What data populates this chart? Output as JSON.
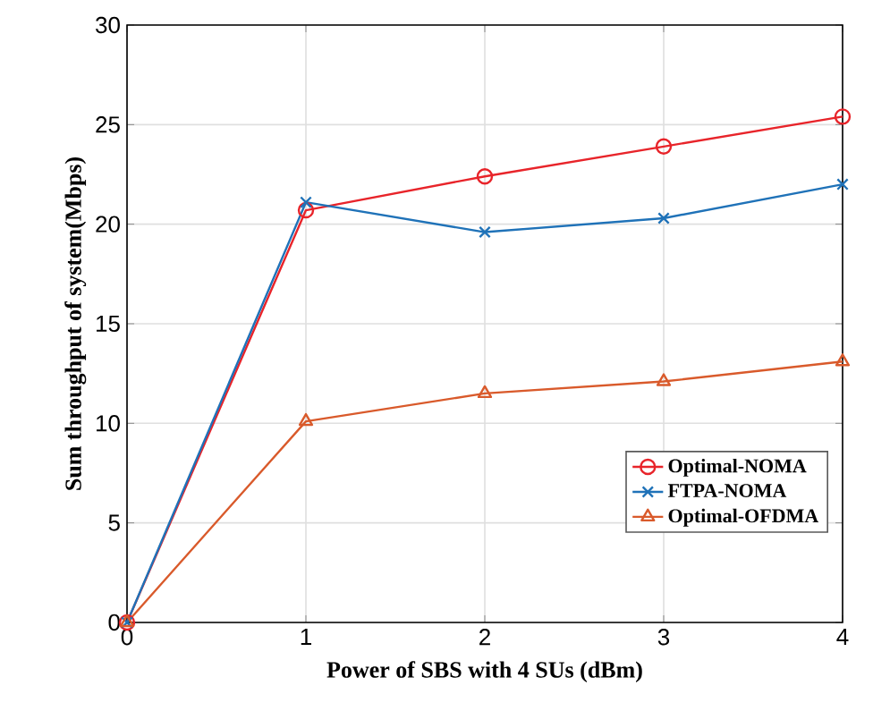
{
  "chart_data": {
    "type": "line",
    "xlabel": "Power of SBS with 4 SUs (dBm)",
    "ylabel": "Sum throughput of system(Mbps)",
    "x": [
      0,
      1,
      2,
      3,
      4
    ],
    "series": [
      {
        "name": "Optimal-NOMA",
        "color": "#e8242a",
        "marker": "circle",
        "values": [
          0,
          20.7,
          22.4,
          23.9,
          25.4
        ]
      },
      {
        "name": "FTPA-NOMA",
        "color": "#1f72b8",
        "marker": "cross",
        "values": [
          0,
          21.1,
          19.6,
          20.3,
          22.0
        ]
      },
      {
        "name": "Optimal-OFDMA",
        "color": "#d95a2b",
        "marker": "triangle",
        "values": [
          0,
          10.1,
          11.5,
          12.1,
          13.1
        ]
      }
    ],
    "xlim": [
      0,
      4
    ],
    "ylim": [
      0,
      30
    ],
    "xticks": [
      0,
      1,
      2,
      3,
      4
    ],
    "yticks": [
      0,
      5,
      10,
      15,
      20,
      25,
      30
    ],
    "grid": true,
    "legend": "bottom right",
    "line_style": "solid"
  }
}
